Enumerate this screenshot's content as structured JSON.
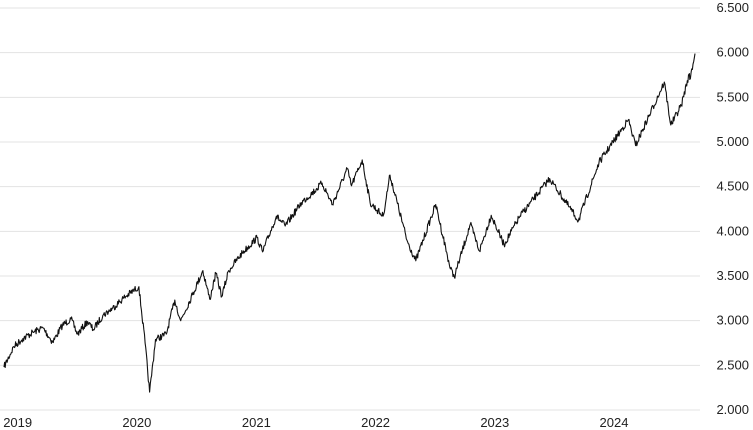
{
  "chart_data": {
    "type": "line",
    "title": "",
    "xlabel": "",
    "ylabel": "",
    "grid": true,
    "legend": "none",
    "line_color": "#111111",
    "grid_color": "#e3e3e3",
    "x_start": "2019-01-02",
    "x_end": "2024-10-18",
    "ylim": [
      2000,
      6500
    ],
    "y_ticks": [
      2000,
      2500,
      3000,
      3500,
      4000,
      4500,
      5000,
      5500,
      6000,
      6500
    ],
    "y_tick_labels": [
      "2.000",
      "2.500",
      "3.000",
      "3.500",
      "4.000",
      "4.500",
      "5.000",
      "5.500",
      "6.000",
      "6.500"
    ],
    "x_ticks": [
      "2019-01-01",
      "2020-01-01",
      "2021-01-01",
      "2022-01-01",
      "2023-01-01",
      "2024-01-01"
    ],
    "x_tick_labels": [
      "2019",
      "2020",
      "2021",
      "2022",
      "2023",
      "2024"
    ],
    "series": [
      {
        "points": [
          [
            "2019-01-02",
            2480
          ],
          [
            "2019-02-01",
            2710
          ],
          [
            "2019-03-01",
            2800
          ],
          [
            "2019-04-01",
            2870
          ],
          [
            "2019-05-01",
            2920
          ],
          [
            "2019-05-31",
            2760
          ],
          [
            "2019-06-30",
            2950
          ],
          [
            "2019-07-26",
            3020
          ],
          [
            "2019-08-15",
            2850
          ],
          [
            "2019-09-15",
            2990
          ],
          [
            "2019-10-02",
            2900
          ],
          [
            "2019-11-01",
            3060
          ],
          [
            "2019-12-01",
            3140
          ],
          [
            "2020-01-02",
            3250
          ],
          [
            "2020-02-19",
            3380
          ],
          [
            "2020-03-09",
            2750
          ],
          [
            "2020-03-23",
            2200
          ],
          [
            "2020-04-10",
            2790
          ],
          [
            "2020-05-13",
            2850
          ],
          [
            "2020-06-08",
            3230
          ],
          [
            "2020-06-26",
            3000
          ],
          [
            "2020-08-01",
            3290
          ],
          [
            "2020-09-02",
            3560
          ],
          [
            "2020-09-23",
            3240
          ],
          [
            "2020-10-12",
            3530
          ],
          [
            "2020-10-30",
            3270
          ],
          [
            "2020-11-20",
            3560
          ],
          [
            "2021-01-01",
            3760
          ],
          [
            "2021-02-15",
            3930
          ],
          [
            "2021-03-04",
            3770
          ],
          [
            "2021-04-15",
            4170
          ],
          [
            "2021-05-12",
            4060
          ],
          [
            "2021-07-01",
            4320
          ],
          [
            "2021-08-15",
            4470
          ],
          [
            "2021-09-02",
            4540
          ],
          [
            "2021-10-04",
            4300
          ],
          [
            "2021-11-18",
            4700
          ],
          [
            "2021-12-01",
            4510
          ],
          [
            "2022-01-03",
            4800
          ],
          [
            "2022-01-27",
            4320
          ],
          [
            "2022-03-08",
            4170
          ],
          [
            "2022-03-29",
            4630
          ],
          [
            "2022-05-20",
            3900
          ],
          [
            "2022-06-16",
            3670
          ],
          [
            "2022-08-16",
            4300
          ],
          [
            "2022-09-30",
            3580
          ],
          [
            "2022-10-12",
            3490
          ],
          [
            "2022-11-30",
            4080
          ],
          [
            "2022-12-28",
            3780
          ],
          [
            "2023-02-02",
            4180
          ],
          [
            "2023-03-13",
            3850
          ],
          [
            "2023-05-01",
            4170
          ],
          [
            "2023-07-31",
            4590
          ],
          [
            "2023-10-27",
            4120
          ],
          [
            "2023-12-29",
            4770
          ],
          [
            "2024-03-28",
            5250
          ],
          [
            "2024-04-19",
            4960
          ],
          [
            "2024-07-16",
            5670
          ],
          [
            "2024-08-05",
            5190
          ],
          [
            "2024-09-06",
            5410
          ],
          [
            "2024-09-30",
            5760
          ],
          [
            "2024-10-02",
            5700
          ],
          [
            "2024-10-18",
            5990
          ]
        ]
      }
    ]
  }
}
